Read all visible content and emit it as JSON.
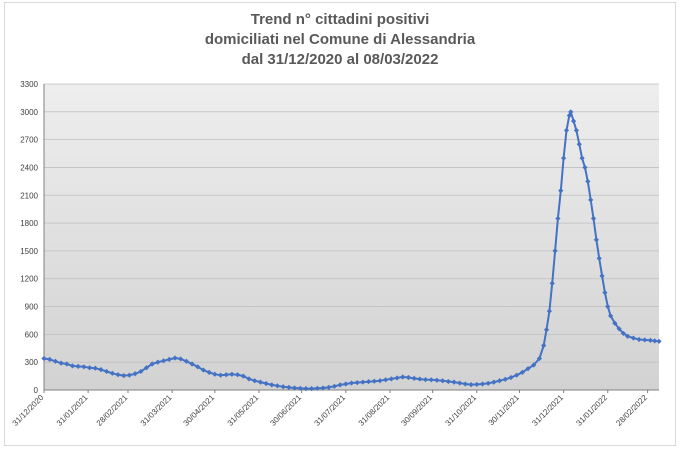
{
  "chart_data": {
    "type": "line",
    "title_lines": [
      "Trend n° cittadini positivi",
      "domiciliati nel Comune di Alessandria",
      "dal 31/12/2020 al 08/03/2022"
    ],
    "xlabel": "",
    "ylabel": "",
    "x_tick_labels": [
      "31/12/2020",
      "31/01/2021",
      "28/02/2021",
      "31/03/2021",
      "30/04/2021",
      "31/05/2021",
      "30/06/2021",
      "31/07/2021",
      "31/08/2021",
      "30/09/2021",
      "31/10/2021",
      "30/11/2021",
      "31/12/2021",
      "31/01/2022",
      "28/02/2022"
    ],
    "y_ticks": [
      0,
      300,
      600,
      900,
      1200,
      1500,
      1800,
      2100,
      2400,
      2700,
      3000,
      3300
    ],
    "ylim": [
      0,
      3300
    ],
    "xlim": [
      "2020-12-31",
      "2022-03-08"
    ],
    "grid": true,
    "legend": "none",
    "series": [
      {
        "color": "#4472c4",
        "points": [
          [
            "2020-12-31",
            340
          ],
          [
            "2021-01-04",
            330
          ],
          [
            "2021-01-08",
            310
          ],
          [
            "2021-01-12",
            290
          ],
          [
            "2021-01-16",
            280
          ],
          [
            "2021-01-20",
            260
          ],
          [
            "2021-01-24",
            255
          ],
          [
            "2021-01-28",
            250
          ],
          [
            "2021-02-01",
            240
          ],
          [
            "2021-02-05",
            235
          ],
          [
            "2021-02-09",
            220
          ],
          [
            "2021-02-13",
            200
          ],
          [
            "2021-02-17",
            180
          ],
          [
            "2021-02-21",
            165
          ],
          [
            "2021-02-25",
            155
          ],
          [
            "2021-03-01",
            160
          ],
          [
            "2021-03-05",
            175
          ],
          [
            "2021-03-09",
            200
          ],
          [
            "2021-03-13",
            240
          ],
          [
            "2021-03-17",
            280
          ],
          [
            "2021-03-21",
            300
          ],
          [
            "2021-03-25",
            315
          ],
          [
            "2021-03-29",
            330
          ],
          [
            "2021-04-02",
            345
          ],
          [
            "2021-04-06",
            335
          ],
          [
            "2021-04-10",
            310
          ],
          [
            "2021-04-14",
            280
          ],
          [
            "2021-04-18",
            250
          ],
          [
            "2021-04-22",
            215
          ],
          [
            "2021-04-26",
            190
          ],
          [
            "2021-04-30",
            170
          ],
          [
            "2021-05-04",
            160
          ],
          [
            "2021-05-08",
            165
          ],
          [
            "2021-05-12",
            170
          ],
          [
            "2021-05-16",
            165
          ],
          [
            "2021-05-20",
            150
          ],
          [
            "2021-05-24",
            120
          ],
          [
            "2021-05-28",
            100
          ],
          [
            "2021-06-01",
            85
          ],
          [
            "2021-06-05",
            70
          ],
          [
            "2021-06-09",
            55
          ],
          [
            "2021-06-13",
            45
          ],
          [
            "2021-06-17",
            35
          ],
          [
            "2021-06-21",
            28
          ],
          [
            "2021-06-25",
            22
          ],
          [
            "2021-06-29",
            18
          ],
          [
            "2021-07-03",
            15
          ],
          [
            "2021-07-07",
            15
          ],
          [
            "2021-07-11",
            18
          ],
          [
            "2021-07-15",
            22
          ],
          [
            "2021-07-19",
            28
          ],
          [
            "2021-07-23",
            40
          ],
          [
            "2021-07-27",
            55
          ],
          [
            "2021-07-31",
            65
          ],
          [
            "2021-08-04",
            75
          ],
          [
            "2021-08-08",
            80
          ],
          [
            "2021-08-12",
            85
          ],
          [
            "2021-08-16",
            90
          ],
          [
            "2021-08-20",
            95
          ],
          [
            "2021-08-24",
            100
          ],
          [
            "2021-08-28",
            110
          ],
          [
            "2021-09-01",
            120
          ],
          [
            "2021-09-05",
            130
          ],
          [
            "2021-09-09",
            140
          ],
          [
            "2021-09-13",
            135
          ],
          [
            "2021-09-17",
            125
          ],
          [
            "2021-09-21",
            118
          ],
          [
            "2021-09-25",
            112
          ],
          [
            "2021-09-29",
            110
          ],
          [
            "2021-10-03",
            105
          ],
          [
            "2021-10-07",
            100
          ],
          [
            "2021-10-11",
            92
          ],
          [
            "2021-10-15",
            85
          ],
          [
            "2021-10-19",
            75
          ],
          [
            "2021-10-23",
            65
          ],
          [
            "2021-10-27",
            58
          ],
          [
            "2021-10-31",
            60
          ],
          [
            "2021-11-04",
            65
          ],
          [
            "2021-11-08",
            72
          ],
          [
            "2021-11-12",
            85
          ],
          [
            "2021-11-16",
            100
          ],
          [
            "2021-11-20",
            115
          ],
          [
            "2021-11-24",
            135
          ],
          [
            "2021-11-28",
            160
          ],
          [
            "2021-12-02",
            190
          ],
          [
            "2021-12-06",
            230
          ],
          [
            "2021-12-10",
            270
          ],
          [
            "2021-12-14",
            340
          ],
          [
            "2021-12-17",
            480
          ],
          [
            "2021-12-19",
            650
          ],
          [
            "2021-12-21",
            850
          ],
          [
            "2021-12-23",
            1150
          ],
          [
            "2021-12-25",
            1500
          ],
          [
            "2021-12-27",
            1850
          ],
          [
            "2021-12-29",
            2150
          ],
          [
            "2021-12-31",
            2500
          ],
          [
            "2022-01-02",
            2800
          ],
          [
            "2022-01-04",
            2960
          ],
          [
            "2022-01-05",
            3000
          ],
          [
            "2022-01-07",
            2900
          ],
          [
            "2022-01-09",
            2800
          ],
          [
            "2022-01-11",
            2650
          ],
          [
            "2022-01-13",
            2500
          ],
          [
            "2022-01-15",
            2400
          ],
          [
            "2022-01-17",
            2250
          ],
          [
            "2022-01-19",
            2050
          ],
          [
            "2022-01-21",
            1850
          ],
          [
            "2022-01-23",
            1620
          ],
          [
            "2022-01-25",
            1420
          ],
          [
            "2022-01-27",
            1230
          ],
          [
            "2022-01-29",
            1050
          ],
          [
            "2022-01-31",
            900
          ],
          [
            "2022-02-02",
            800
          ],
          [
            "2022-02-05",
            720
          ],
          [
            "2022-02-08",
            660
          ],
          [
            "2022-02-11",
            610
          ],
          [
            "2022-02-14",
            580
          ],
          [
            "2022-02-18",
            560
          ],
          [
            "2022-02-22",
            545
          ],
          [
            "2022-02-26",
            540
          ],
          [
            "2022-03-02",
            535
          ],
          [
            "2022-03-05",
            530
          ],
          [
            "2022-03-08",
            525
          ]
        ]
      }
    ]
  }
}
